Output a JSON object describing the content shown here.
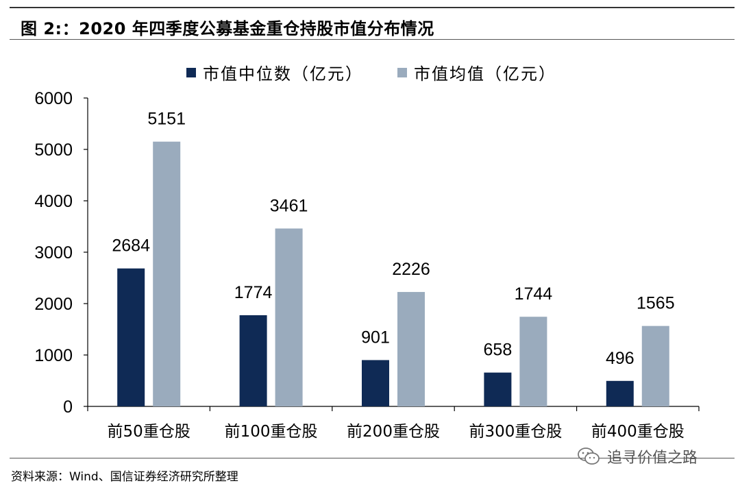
{
  "header": {
    "title": "图  2:：2020 年四季度公募基金重仓持股市值分布情况"
  },
  "legend": [
    {
      "label": "市值中位数（亿元）",
      "color": "#0f2a55"
    },
    {
      "label": "市值均值（亿元）",
      "color": "#9aabbd"
    }
  ],
  "chart_data": {
    "type": "bar",
    "categories": [
      "前50重仓股",
      "前100重仓股",
      "前200重仓股",
      "前300重仓股",
      "前400重仓股"
    ],
    "series": [
      {
        "name": "市值中位数（亿元）",
        "color": "#0f2a55",
        "values": [
          2684,
          1774,
          901,
          658,
          496
        ]
      },
      {
        "name": "市值均值（亿元）",
        "color": "#9aabbd",
        "values": [
          5151,
          3461,
          2226,
          1744,
          1565
        ]
      }
    ],
    "ylim": [
      0,
      6000
    ],
    "yticks": [
      0,
      1000,
      2000,
      3000,
      4000,
      5000,
      6000
    ],
    "data_labels": true,
    "grid": false,
    "legend_position": "top"
  },
  "footer": {
    "source": "资料来源：Wind、国信证券经济研究所整理",
    "watermark": "追寻价值之路",
    "watermark_icon": "wechat-icon"
  }
}
